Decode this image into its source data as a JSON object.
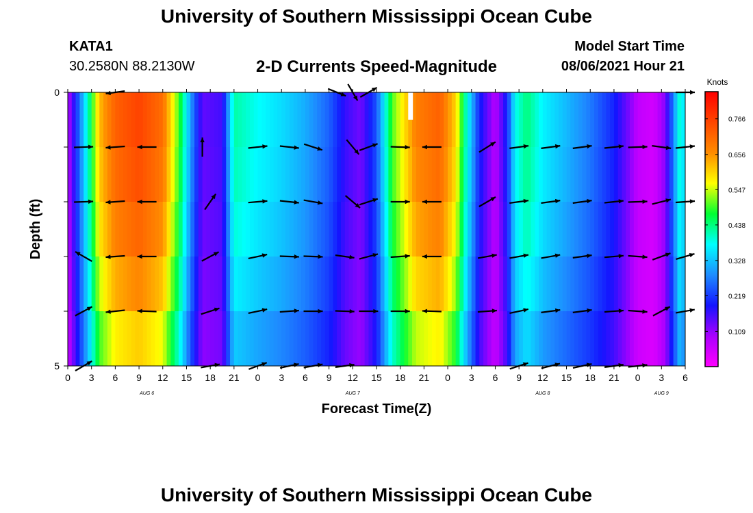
{
  "header": {
    "top_title": "University of Southern Mississippi Ocean Cube",
    "bottom_title": "University of Southern Mississippi Ocean Cube",
    "station_id": "KATA1",
    "coordinates": "30.2580N  88.2130W",
    "plot_title": "2-D Currents Speed-Magnitude",
    "model_start_label": "Model Start Time",
    "model_start_value": "08/06/2021 Hour 21"
  },
  "chart_data": {
    "type": "heatmap",
    "title": "2-D Currents Speed-Magnitude",
    "xlabel": "Forecast Time(Z)",
    "ylabel": "Depth (ft)",
    "x_hours": [
      0,
      3,
      6,
      9,
      12,
      15,
      18,
      21,
      24,
      27,
      30,
      33,
      36,
      39,
      42,
      45,
      48,
      51,
      54,
      57,
      60,
      63,
      66,
      69,
      72,
      75,
      78
    ],
    "x_tick_labels": [
      "0",
      "3",
      "6",
      "9",
      "12",
      "15",
      "18",
      "21",
      "0",
      "3",
      "6",
      "9",
      "12",
      "15",
      "18",
      "21",
      "0",
      "3",
      "6",
      "9",
      "12",
      "15",
      "18",
      "21",
      "0",
      "3",
      "6"
    ],
    "x_range": [
      0,
      78
    ],
    "date_labels": [
      {
        "hour": 10,
        "label": "AUG  6"
      },
      {
        "hour": 36,
        "label": "AUG  7"
      },
      {
        "hour": 60,
        "label": "AUG  8"
      },
      {
        "hour": 75,
        "label": "AUG  9"
      }
    ],
    "y_tick_labels": [
      {
        "depth": 0,
        "label": "0"
      },
      {
        "depth": 5,
        "label": "5"
      }
    ],
    "y_range": [
      0,
      5
    ],
    "depth_levels": 5,
    "colorbar": {
      "units": "Knots",
      "range": [
        0,
        0.85
      ],
      "tick_values": [
        0.109,
        0.219,
        0.328,
        0.438,
        0.547,
        0.656,
        0.766
      ],
      "tick_labels": [
        "0.109",
        "0.219",
        "0.328",
        "0.438",
        "0.547",
        "0.656",
        "0.766"
      ],
      "colors": [
        "#ff00ff",
        "#aa00ff",
        "#1414ff",
        "#1e8cff",
        "#00ffff",
        "#00ff32",
        "#ffff00",
        "#ff8c00",
        "#ff4600",
        "#ff0000"
      ]
    },
    "speed_profile": [
      {
        "h": 0,
        "v": 0.08
      },
      {
        "h": 1,
        "v": 0.2
      },
      {
        "h": 2.5,
        "v": 0.4
      },
      {
        "h": 4,
        "v": 0.62
      },
      {
        "h": 6,
        "v": 0.72
      },
      {
        "h": 9,
        "v": 0.76
      },
      {
        "h": 12,
        "v": 0.7
      },
      {
        "h": 14,
        "v": 0.5
      },
      {
        "h": 15.5,
        "v": 0.3
      },
      {
        "h": 17,
        "v": 0.14
      },
      {
        "h": 19.5,
        "v": 0.16
      },
      {
        "h": 21,
        "v": 0.42
      },
      {
        "h": 24,
        "v": 0.38
      },
      {
        "h": 27,
        "v": 0.35
      },
      {
        "h": 30,
        "v": 0.31
      },
      {
        "h": 33,
        "v": 0.25
      },
      {
        "h": 35,
        "v": 0.17
      },
      {
        "h": 37,
        "v": 0.13
      },
      {
        "h": 39,
        "v": 0.24
      },
      {
        "h": 41,
        "v": 0.5
      },
      {
        "h": 44,
        "v": 0.68
      },
      {
        "h": 47,
        "v": 0.72
      },
      {
        "h": 49,
        "v": 0.6
      },
      {
        "h": 50.5,
        "v": 0.38
      },
      {
        "h": 52,
        "v": 0.2
      },
      {
        "h": 54,
        "v": 0.08
      },
      {
        "h": 55.5,
        "v": 0.2
      },
      {
        "h": 56.5,
        "v": 0.38
      },
      {
        "h": 58,
        "v": 0.44
      },
      {
        "h": 60,
        "v": 0.37
      },
      {
        "h": 63,
        "v": 0.32
      },
      {
        "h": 66,
        "v": 0.27
      },
      {
        "h": 69,
        "v": 0.2
      },
      {
        "h": 71,
        "v": 0.12
      },
      {
        "h": 72,
        "v": 0.07
      },
      {
        "h": 74,
        "v": 0.05
      },
      {
        "h": 75.5,
        "v": 0.12
      },
      {
        "h": 76.5,
        "v": 0.28
      },
      {
        "h": 77.3,
        "v": 0.4
      },
      {
        "h": 78,
        "v": 0.35
      }
    ],
    "depth_factor": [
      1.0,
      0.98,
      0.94,
      0.88,
      0.8
    ],
    "vectors": [
      {
        "h": 6,
        "d": 0,
        "dir": 262
      },
      {
        "h": 34,
        "d": 0,
        "dir": 112
      },
      {
        "h": 36,
        "d": 0,
        "dir": 150
      },
      {
        "h": 38,
        "d": 0,
        "dir": 60
      },
      {
        "h": 78,
        "d": 0,
        "dir": 90
      },
      {
        "h": 2,
        "d": 1,
        "dir": 88
      },
      {
        "h": 6,
        "d": 1,
        "dir": 266
      },
      {
        "h": 10,
        "d": 1,
        "dir": 270
      },
      {
        "h": 17,
        "d": 1,
        "dir": 0
      },
      {
        "h": 24,
        "d": 1,
        "dir": 84
      },
      {
        "h": 28,
        "d": 1,
        "dir": 96
      },
      {
        "h": 31,
        "d": 1,
        "dir": 108
      },
      {
        "h": 36,
        "d": 1,
        "dir": 140
      },
      {
        "h": 38,
        "d": 1,
        "dir": 70
      },
      {
        "h": 42,
        "d": 1,
        "dir": 92
      },
      {
        "h": 46,
        "d": 1,
        "dir": 270
      },
      {
        "h": 53,
        "d": 1,
        "dir": 58
      },
      {
        "h": 57,
        "d": 1,
        "dir": 82
      },
      {
        "h": 61,
        "d": 1,
        "dir": 82
      },
      {
        "h": 65,
        "d": 1,
        "dir": 82
      },
      {
        "h": 69,
        "d": 1,
        "dir": 84
      },
      {
        "h": 72,
        "d": 1,
        "dir": 88
      },
      {
        "h": 75,
        "d": 1,
        "dir": 98
      },
      {
        "h": 78,
        "d": 1,
        "dir": 84
      },
      {
        "h": 2,
        "d": 2,
        "dir": 88
      },
      {
        "h": 6,
        "d": 2,
        "dir": 266
      },
      {
        "h": 10,
        "d": 2,
        "dir": 270
      },
      {
        "h": 18,
        "d": 2,
        "dir": 35
      },
      {
        "h": 24,
        "d": 2,
        "dir": 85
      },
      {
        "h": 28,
        "d": 2,
        "dir": 96
      },
      {
        "h": 31,
        "d": 2,
        "dir": 100
      },
      {
        "h": 36,
        "d": 2,
        "dir": 130
      },
      {
        "h": 38,
        "d": 2,
        "dir": 72
      },
      {
        "h": 42,
        "d": 2,
        "dir": 90
      },
      {
        "h": 46,
        "d": 2,
        "dir": 270
      },
      {
        "h": 53,
        "d": 2,
        "dir": 60
      },
      {
        "h": 57,
        "d": 2,
        "dir": 82
      },
      {
        "h": 61,
        "d": 2,
        "dir": 82
      },
      {
        "h": 65,
        "d": 2,
        "dir": 82
      },
      {
        "h": 69,
        "d": 2,
        "dir": 84
      },
      {
        "h": 72,
        "d": 2,
        "dir": 88
      },
      {
        "h": 75,
        "d": 2,
        "dir": 76
      },
      {
        "h": 78,
        "d": 2,
        "dir": 86
      },
      {
        "h": 2,
        "d": 3,
        "dir": 300
      },
      {
        "h": 6,
        "d": 3,
        "dir": 266
      },
      {
        "h": 10,
        "d": 3,
        "dir": 270
      },
      {
        "h": 18,
        "d": 3,
        "dir": 62
      },
      {
        "h": 24,
        "d": 3,
        "dir": 78
      },
      {
        "h": 28,
        "d": 3,
        "dir": 92
      },
      {
        "h": 31,
        "d": 3,
        "dir": 92
      },
      {
        "h": 35,
        "d": 3,
        "dir": 98
      },
      {
        "h": 38,
        "d": 3,
        "dir": 75
      },
      {
        "h": 42,
        "d": 3,
        "dir": 86
      },
      {
        "h": 46,
        "d": 3,
        "dir": 270
      },
      {
        "h": 53,
        "d": 3,
        "dir": 80
      },
      {
        "h": 57,
        "d": 3,
        "dir": 80
      },
      {
        "h": 61,
        "d": 3,
        "dir": 80
      },
      {
        "h": 65,
        "d": 3,
        "dir": 82
      },
      {
        "h": 69,
        "d": 3,
        "dir": 85
      },
      {
        "h": 72,
        "d": 3,
        "dir": 94
      },
      {
        "h": 75,
        "d": 3,
        "dir": 70
      },
      {
        "h": 78,
        "d": 3,
        "dir": 74
      },
      {
        "h": 2,
        "d": 4,
        "dir": 62
      },
      {
        "h": 6,
        "d": 4,
        "dir": 264
      },
      {
        "h": 10,
        "d": 4,
        "dir": 272
      },
      {
        "h": 18,
        "d": 4,
        "dir": 72
      },
      {
        "h": 24,
        "d": 4,
        "dir": 78
      },
      {
        "h": 28,
        "d": 4,
        "dir": 86
      },
      {
        "h": 31,
        "d": 4,
        "dir": 90
      },
      {
        "h": 35,
        "d": 4,
        "dir": 92
      },
      {
        "h": 38,
        "d": 4,
        "dir": 90
      },
      {
        "h": 42,
        "d": 4,
        "dir": 90
      },
      {
        "h": 46,
        "d": 4,
        "dir": 272
      },
      {
        "h": 53,
        "d": 4,
        "dir": 86
      },
      {
        "h": 57,
        "d": 4,
        "dir": 78
      },
      {
        "h": 61,
        "d": 4,
        "dir": 82
      },
      {
        "h": 65,
        "d": 4,
        "dir": 82
      },
      {
        "h": 69,
        "d": 4,
        "dir": 86
      },
      {
        "h": 72,
        "d": 4,
        "dir": 94
      },
      {
        "h": 75,
        "d": 4,
        "dir": 62
      },
      {
        "h": 78,
        "d": 4,
        "dir": 80
      },
      {
        "h": 2,
        "d": 5,
        "dir": 60
      },
      {
        "h": 18,
        "d": 5,
        "dir": 80
      },
      {
        "h": 24,
        "d": 5,
        "dir": 70
      },
      {
        "h": 28,
        "d": 5,
        "dir": 78
      },
      {
        "h": 31,
        "d": 5,
        "dir": 80
      },
      {
        "h": 35,
        "d": 5,
        "dir": 82
      },
      {
        "h": 57,
        "d": 5,
        "dir": 72
      },
      {
        "h": 61,
        "d": 5,
        "dir": 76
      },
      {
        "h": 65,
        "d": 5,
        "dir": 78
      },
      {
        "h": 69,
        "d": 5,
        "dir": 82
      },
      {
        "h": 72,
        "d": 5,
        "dir": 84
      }
    ],
    "missing_data_marker": {
      "hour_start": 43,
      "hour_end": 43.6,
      "depth_start": 0,
      "depth_end": 0.5
    }
  }
}
